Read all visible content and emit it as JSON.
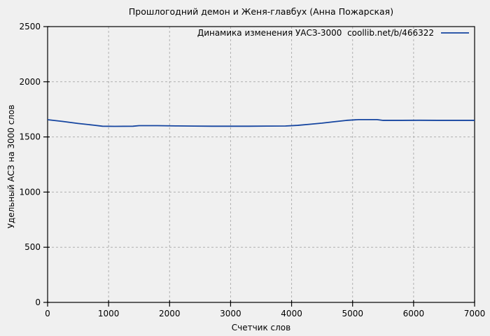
{
  "chart_data": {
    "type": "line",
    "title": "Прошлогодний демон и Женя-главбух (Анна Пожарская)",
    "xlabel": "Счетчик слов",
    "ylabel": "Удельный АСЗ на 3000 слов",
    "xlim": [
      0,
      7000
    ],
    "ylim": [
      0,
      2500
    ],
    "x_ticks": [
      0,
      1000,
      2000,
      3000,
      4000,
      5000,
      6000,
      7000
    ],
    "y_ticks": [
      0,
      500,
      1000,
      1500,
      2000,
      2500
    ],
    "grid": true,
    "legend_position": "top-right-inside",
    "series": [
      {
        "name": "Динамика изменения УАСЗ-3000  coollib.net/b/466322",
        "points": [
          [
            0,
            1656
          ],
          [
            250,
            1640
          ],
          [
            500,
            1622
          ],
          [
            750,
            1607
          ],
          [
            900,
            1597
          ],
          [
            1100,
            1596
          ],
          [
            1400,
            1597
          ],
          [
            1500,
            1602
          ],
          [
            1800,
            1602
          ],
          [
            2100,
            1600
          ],
          [
            2400,
            1598
          ],
          [
            2700,
            1597
          ],
          [
            3000,
            1597
          ],
          [
            3300,
            1597
          ],
          [
            3600,
            1598
          ],
          [
            3900,
            1599
          ],
          [
            4100,
            1605
          ],
          [
            4300,
            1615
          ],
          [
            4500,
            1625
          ],
          [
            4700,
            1638
          ],
          [
            4900,
            1650
          ],
          [
            5100,
            1657
          ],
          [
            5400,
            1657
          ],
          [
            5500,
            1650
          ],
          [
            5800,
            1650
          ],
          [
            6100,
            1651
          ],
          [
            6400,
            1650
          ],
          [
            6700,
            1650
          ],
          [
            7000,
            1650
          ]
        ]
      }
    ],
    "colors": {
      "line": "#1545a0",
      "grid": "#b0b0b0",
      "background": "#f0f0f0",
      "border": "#000000",
      "text": "#000000"
    }
  }
}
